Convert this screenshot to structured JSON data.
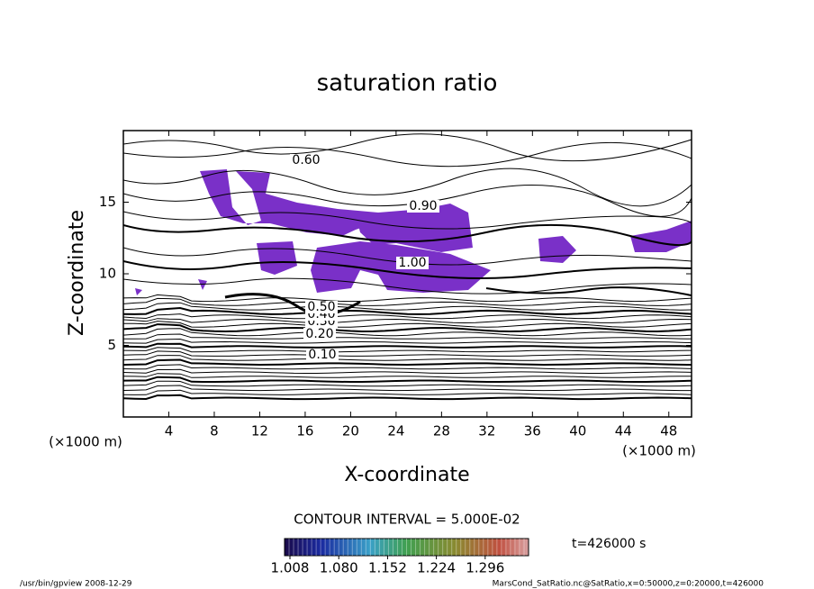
{
  "chart_data": {
    "type": "contour",
    "title": "saturation ratio",
    "x_label": "X-coordinate",
    "y_label": "Z-coordinate",
    "axis_unit": "(×1000 m)",
    "xlim": [
      0,
      50
    ],
    "xticks": [
      4,
      8,
      12,
      16,
      20,
      24,
      28,
      32,
      36,
      40,
      44,
      48
    ],
    "ylim": [
      0,
      20
    ],
    "yticks": [
      5,
      10,
      15
    ],
    "contour_labels": [
      {
        "value": 0.1,
        "label": "0.10"
      },
      {
        "value": 0.2,
        "label": "0.20"
      },
      {
        "value": 0.3,
        "label": "0.30"
      },
      {
        "value": 0.4,
        "label": "0.40"
      },
      {
        "value": 0.5,
        "label": "0.50"
      },
      {
        "value": 0.6,
        "label": "0.60"
      },
      {
        "value": 0.9,
        "label": "0.90"
      },
      {
        "value": 1.0,
        "label": "1.00"
      }
    ],
    "contour_interval": "CONTOUR INTERVAL = 5.000E-02",
    "colorbar_lim": [
      1.0,
      1.36
    ],
    "colorbar_ticks": [
      1.008,
      {
        "value": 1.08,
        "label": "1.080"
      },
      1.152,
      1.224,
      1.296
    ],
    "time_label": "t=426000 s",
    "footer_left": "/usr/bin/gpview   2008-12-29",
    "footer_right": "MarsCond_SatRatio.nc@SatRatio,x=0:50000,z=0:20000,t=426000"
  }
}
